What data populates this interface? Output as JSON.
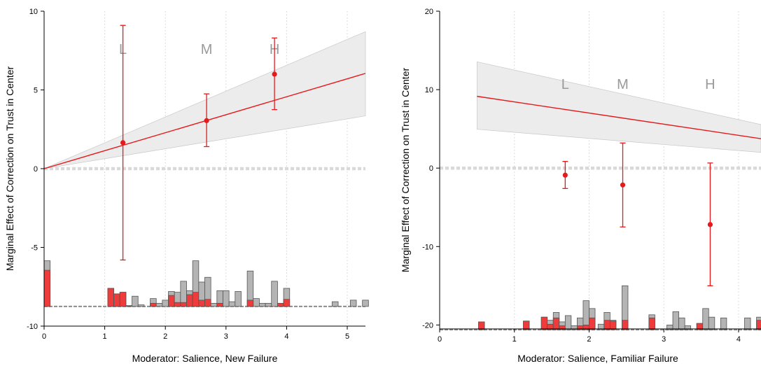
{
  "chart_data": [
    {
      "type": "line",
      "xlabel": "Moderator: Salience, New Failure",
      "ylabel": "Marginal Effect of Correction on Trust in Center",
      "xlim": [
        0,
        5.3
      ],
      "ylim": [
        -10,
        10
      ],
      "x_ticks": [
        0,
        1,
        2,
        3,
        4,
        5
      ],
      "y_ticks": [
        10,
        5,
        0,
        -5,
        -10
      ],
      "colors": {
        "line": "#e41a1c",
        "band": "#ececec",
        "hist_total": "#b4b4b4",
        "hist_treated": "#ee3b3b",
        "zero_line": "#d9d9d9"
      },
      "linear_fit": {
        "x": [
          0,
          5.3
        ],
        "y": [
          0,
          6.05
        ]
      },
      "confidence_band": {
        "x": [
          0,
          5.3
        ],
        "lower": [
          0,
          3.35
        ],
        "upper": [
          0,
          8.7
        ]
      },
      "binned_estimates": [
        {
          "label": "L",
          "x": 1.3,
          "estimate": 1.65,
          "ci_low": -5.8,
          "ci_high": 9.1
        },
        {
          "label": "M",
          "x": 2.68,
          "estimate": 3.05,
          "ci_low": 1.4,
          "ci_high": 4.75
        },
        {
          "label": "H",
          "x": 3.8,
          "estimate": 6.0,
          "ci_low": 3.75,
          "ci_high": 8.3
        }
      ],
      "histogram": {
        "baseline": -8.75,
        "bin_width": 0.1,
        "bins": [
          {
            "x": 0.0,
            "total": -5.85,
            "treated": -6.45
          },
          {
            "x": 1.05,
            "total": -7.6,
            "treated": -7.6
          },
          {
            "x": 1.15,
            "total": -7.95,
            "treated": -7.95
          },
          {
            "x": 1.25,
            "total": -7.85,
            "treated": -7.85
          },
          {
            "x": 1.35,
            "total": -8.7,
            "treated": -8.7
          },
          {
            "x": 1.45,
            "total": -8.1,
            "treated": -8.75
          },
          {
            "x": 1.55,
            "total": -8.65,
            "treated": -8.75
          },
          {
            "x": 1.75,
            "total": -8.25,
            "treated": -8.55
          },
          {
            "x": 1.85,
            "total": -8.55,
            "treated": -8.75
          },
          {
            "x": 1.95,
            "total": -8.35,
            "treated": -8.75
          },
          {
            "x": 2.05,
            "total": -7.8,
            "treated": -8.05
          },
          {
            "x": 2.15,
            "total": -7.85,
            "treated": -8.5
          },
          {
            "x": 2.25,
            "total": -7.15,
            "treated": -8.5
          },
          {
            "x": 2.35,
            "total": -7.75,
            "treated": -8.0
          },
          {
            "x": 2.45,
            "total": -5.85,
            "treated": -7.85
          },
          {
            "x": 2.55,
            "total": -7.2,
            "treated": -8.35
          },
          {
            "x": 2.65,
            "total": -6.9,
            "treated": -8.3
          },
          {
            "x": 2.75,
            "total": -8.55,
            "treated": -8.75
          },
          {
            "x": 2.85,
            "total": -7.75,
            "treated": -8.55
          },
          {
            "x": 2.95,
            "total": -7.75,
            "treated": -8.75
          },
          {
            "x": 3.05,
            "total": -8.45,
            "treated": -8.75
          },
          {
            "x": 3.15,
            "total": -7.8,
            "treated": -8.75
          },
          {
            "x": 3.35,
            "total": -6.5,
            "treated": -8.35
          },
          {
            "x": 3.45,
            "total": -8.25,
            "treated": -8.75
          },
          {
            "x": 3.55,
            "total": -8.55,
            "treated": -8.75
          },
          {
            "x": 3.65,
            "total": -8.55,
            "treated": -8.75
          },
          {
            "x": 3.75,
            "total": -7.15,
            "treated": -8.75
          },
          {
            "x": 3.85,
            "total": -8.55,
            "treated": -8.55
          },
          {
            "x": 3.95,
            "total": -7.6,
            "treated": -8.3
          },
          {
            "x": 4.75,
            "total": -8.45,
            "treated": -8.75
          },
          {
            "x": 5.05,
            "total": -8.35,
            "treated": -8.75
          },
          {
            "x": 5.25,
            "total": -8.35,
            "treated": -8.75
          }
        ]
      }
    },
    {
      "type": "line",
      "xlabel": "Moderator: Salience, Familiar Failure",
      "ylabel": "Marginal Effect of Correction on Trust in Center",
      "xlim": [
        0,
        4.3
      ],
      "ylim": [
        -20.5,
        20
      ],
      "x_ticks": [
        0,
        1,
        2,
        3,
        4
      ],
      "y_ticks": [
        20,
        10,
        0,
        -10,
        -20
      ],
      "colors": {
        "line": "#e41a1c",
        "band": "#ececec",
        "hist_total": "#b4b4b4",
        "hist_treated": "#ee3b3b",
        "zero_line": "#d9d9d9"
      },
      "linear_fit": {
        "x": [
          0.5,
          4.3
        ],
        "y": [
          9.15,
          3.75
        ]
      },
      "confidence_band": {
        "x": [
          0.5,
          4.3
        ],
        "lower": [
          4.95,
          2.0
        ],
        "upper": [
          13.55,
          5.55
        ]
      },
      "binned_estimates": [
        {
          "label": "L",
          "x": 1.68,
          "estimate": -0.9,
          "ci_low": -2.6,
          "ci_high": 0.85
        },
        {
          "label": "M",
          "x": 2.45,
          "estimate": -2.15,
          "ci_low": -7.5,
          "ci_high": 3.2
        },
        {
          "label": "H",
          "x": 3.62,
          "estimate": -7.2,
          "ci_low": -15.0,
          "ci_high": 0.65
        }
      ],
      "histogram": {
        "baseline": -20.6,
        "bin_width": 0.08,
        "bins": [
          {
            "x": 0.52,
            "total": -19.6,
            "treated": -19.6
          },
          {
            "x": 1.12,
            "total": -19.5,
            "treated": -19.5
          },
          {
            "x": 1.36,
            "total": -19.0,
            "treated": -19.0
          },
          {
            "x": 1.44,
            "total": -19.4,
            "treated": -19.9
          },
          {
            "x": 1.52,
            "total": -18.4,
            "treated": -19.1
          },
          {
            "x": 1.6,
            "total": -19.6,
            "treated": -20.1
          },
          {
            "x": 1.68,
            "total": -18.8,
            "treated": -20.6
          },
          {
            "x": 1.76,
            "total": -20.1,
            "treated": -20.6
          },
          {
            "x": 1.84,
            "total": -19.1,
            "treated": -20.1
          },
          {
            "x": 1.92,
            "total": -16.9,
            "treated": -20.0
          },
          {
            "x": 2.0,
            "total": -17.9,
            "treated": -19.1
          },
          {
            "x": 2.12,
            "total": -19.9,
            "treated": -20.6
          },
          {
            "x": 2.2,
            "total": -18.4,
            "treated": -19.4
          },
          {
            "x": 2.28,
            "total": -19.4,
            "treated": -19.5
          },
          {
            "x": 2.44,
            "total": -15.0,
            "treated": -19.4
          },
          {
            "x": 2.8,
            "total": -18.7,
            "treated": -19.1
          },
          {
            "x": 3.04,
            "total": -20.0,
            "treated": -20.6
          },
          {
            "x": 3.12,
            "total": -18.3,
            "treated": -20.6
          },
          {
            "x": 3.2,
            "total": -19.1,
            "treated": -20.6
          },
          {
            "x": 3.28,
            "total": -20.1,
            "treated": -20.6
          },
          {
            "x": 3.44,
            "total": -19.8,
            "treated": -19.8
          },
          {
            "x": 3.52,
            "total": -17.9,
            "treated": -20.6
          },
          {
            "x": 3.6,
            "total": -19.0,
            "treated": -20.6
          },
          {
            "x": 3.76,
            "total": -19.1,
            "treated": -20.6
          },
          {
            "x": 4.08,
            "total": -19.1,
            "treated": -20.6
          },
          {
            "x": 4.24,
            "total": -19.0,
            "treated": -19.4
          },
          {
            "x": 4.3,
            "total": -20.3,
            "treated": -20.6
          }
        ]
      }
    }
  ]
}
